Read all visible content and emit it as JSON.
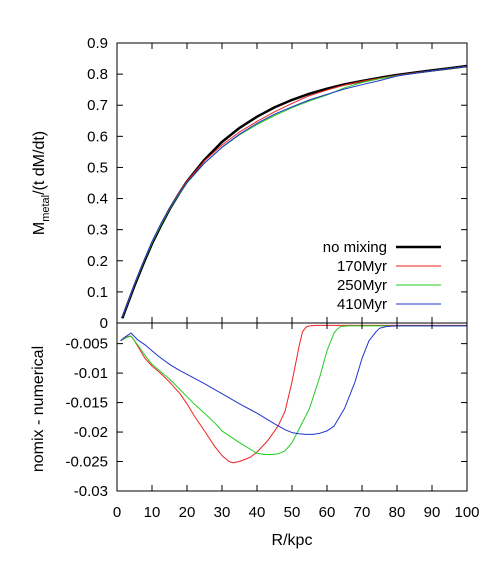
{
  "chart_data": [
    {
      "type": "line",
      "panel": "top",
      "xlim": [
        0,
        100
      ],
      "ylim": [
        0,
        0.9
      ],
      "xlabel": "",
      "ylabel_main": "M",
      "ylabel_sub": "metal",
      "ylabel_rest": "/(t dM/dt)",
      "ytick_labels": [
        "0",
        "0.1",
        "0.2",
        "0.3",
        "0.4",
        "0.5",
        "0.6",
        "0.7",
        "0.8",
        "0.9"
      ],
      "legend_position": "bottom-right",
      "grid": false,
      "series": [
        {
          "name": "no mixing",
          "color": "#000000",
          "x": [
            1.5,
            3,
            5,
            7.5,
            10,
            12.5,
            15,
            17.5,
            20,
            25,
            30,
            35,
            40,
            45,
            50,
            55,
            60,
            65,
            70,
            75,
            80,
            85,
            90,
            95,
            100
          ],
          "y": [
            0.015,
            0.06,
            0.12,
            0.19,
            0.255,
            0.312,
            0.365,
            0.412,
            0.455,
            0.525,
            0.582,
            0.627,
            0.663,
            0.693,
            0.717,
            0.737,
            0.753,
            0.767,
            0.778,
            0.788,
            0.797,
            0.805,
            0.812,
            0.819,
            0.826
          ]
        },
        {
          "name": "170Myr",
          "color": "#ee2222",
          "x": [
            1.5,
            3,
            5,
            7.5,
            10,
            12.5,
            15,
            17.5,
            20,
            25,
            30,
            35,
            40,
            45,
            50,
            55,
            60,
            65,
            70,
            75,
            80,
            85,
            90,
            95,
            100
          ],
          "y": [
            0.02,
            0.063,
            0.125,
            0.195,
            0.26,
            0.318,
            0.37,
            0.415,
            0.456,
            0.521,
            0.572,
            0.614,
            0.648,
            0.679,
            0.706,
            0.731,
            0.749,
            0.765,
            0.777,
            0.787,
            0.796,
            0.804,
            0.811,
            0.818,
            0.825
          ]
        },
        {
          "name": "250Myr",
          "color": "#22cc22",
          "x": [
            1.5,
            3,
            5,
            7.5,
            10,
            12.5,
            15,
            17.5,
            20,
            25,
            30,
            35,
            40,
            45,
            50,
            55,
            60,
            65,
            70,
            75,
            80,
            85,
            90,
            95,
            100
          ],
          "y": [
            0.02,
            0.062,
            0.124,
            0.194,
            0.258,
            0.315,
            0.366,
            0.41,
            0.45,
            0.514,
            0.564,
            0.605,
            0.638,
            0.667,
            0.692,
            0.714,
            0.733,
            0.756,
            0.773,
            0.785,
            0.795,
            0.803,
            0.811,
            0.818,
            0.825
          ]
        },
        {
          "name": "410Myr",
          "color": "#2233cc",
          "x": [
            1.5,
            3,
            5,
            7.5,
            10,
            12.5,
            15,
            17.5,
            20,
            25,
            30,
            35,
            40,
            45,
            50,
            55,
            60,
            65,
            70,
            75,
            80,
            85,
            90,
            95,
            100
          ],
          "y": [
            0.02,
            0.063,
            0.126,
            0.196,
            0.262,
            0.319,
            0.369,
            0.413,
            0.452,
            0.514,
            0.565,
            0.607,
            0.642,
            0.671,
            0.695,
            0.717,
            0.735,
            0.752,
            0.766,
            0.779,
            0.794,
            0.803,
            0.811,
            0.818,
            0.825
          ]
        }
      ]
    },
    {
      "type": "line",
      "panel": "bottom",
      "xlim": [
        0,
        100
      ],
      "ylim": [
        -0.03,
        -0.0015
      ],
      "xlabel": "R/kpc",
      "ylabel": "nomix - numerical",
      "xtick_labels": [
        "0",
        "10",
        "20",
        "30",
        "40",
        "50",
        "60",
        "70",
        "80",
        "90",
        "100"
      ],
      "ytick_values": [
        -0.005,
        -0.01,
        -0.015,
        -0.02,
        -0.025,
        -0.03
      ],
      "ytick_labels": [
        "-0.005",
        "-0.01",
        "-0.015",
        "-0.02",
        "-0.025",
        "-0.03"
      ],
      "grid": false,
      "series": [
        {
          "color": "#ee2222",
          "x": [
            1,
            2,
            3,
            4,
            5,
            6,
            8,
            10,
            12,
            15,
            18,
            20,
            22,
            25,
            28,
            30,
            32,
            33,
            35,
            38,
            40,
            43,
            46,
            48,
            50,
            52,
            53,
            54,
            55,
            57,
            60,
            65,
            70,
            80,
            90,
            100
          ],
          "y": [
            -0.0045,
            -0.0042,
            -0.0038,
            -0.0037,
            -0.0045,
            -0.0055,
            -0.0075,
            -0.0088,
            -0.0098,
            -0.0115,
            -0.0135,
            -0.0152,
            -0.0172,
            -0.0198,
            -0.0225,
            -0.024,
            -0.025,
            -0.0252,
            -0.025,
            -0.0243,
            -0.0234,
            -0.0215,
            -0.019,
            -0.0165,
            -0.0115,
            -0.0055,
            -0.003,
            -0.0022,
            -0.002,
            -0.0019,
            -0.0019,
            -0.0019,
            -0.0019,
            -0.0019,
            -0.0019,
            -0.0019
          ]
        },
        {
          "color": "#22cc22",
          "x": [
            1,
            2,
            3,
            4,
            5,
            6,
            8,
            10,
            12,
            15,
            18,
            20,
            22,
            25,
            28,
            30,
            35,
            40,
            42,
            44,
            46,
            48,
            50,
            52,
            55,
            58,
            60,
            62,
            63,
            64,
            66,
            70,
            80,
            90,
            100
          ],
          "y": [
            -0.0045,
            -0.0042,
            -0.0039,
            -0.0037,
            -0.0045,
            -0.0053,
            -0.007,
            -0.0085,
            -0.0095,
            -0.011,
            -0.0128,
            -0.014,
            -0.0152,
            -0.0168,
            -0.0185,
            -0.0198,
            -0.0218,
            -0.0236,
            -0.0238,
            -0.0238,
            -0.0237,
            -0.0232,
            -0.0218,
            -0.0195,
            -0.016,
            -0.0105,
            -0.0062,
            -0.0032,
            -0.0025,
            -0.0021,
            -0.002,
            -0.002,
            -0.002,
            -0.002,
            -0.002
          ]
        },
        {
          "color": "#2233cc",
          "x": [
            1,
            2,
            3,
            4,
            5,
            6,
            8,
            10,
            12,
            15,
            18,
            20,
            25,
            30,
            35,
            40,
            45,
            48,
            50,
            52,
            54,
            56,
            58,
            60,
            62,
            65,
            68,
            70,
            72,
            74,
            75,
            77,
            80,
            90,
            100
          ],
          "y": [
            -0.0045,
            -0.004,
            -0.0036,
            -0.0032,
            -0.0038,
            -0.0044,
            -0.0052,
            -0.0062,
            -0.0072,
            -0.0085,
            -0.0096,
            -0.0102,
            -0.0118,
            -0.0135,
            -0.0152,
            -0.0168,
            -0.0186,
            -0.0196,
            -0.0201,
            -0.0203,
            -0.0204,
            -0.0204,
            -0.0202,
            -0.0198,
            -0.019,
            -0.016,
            -0.0115,
            -0.0075,
            -0.0045,
            -0.003,
            -0.0024,
            -0.0021,
            -0.002,
            -0.002,
            -0.002
          ]
        }
      ]
    }
  ]
}
